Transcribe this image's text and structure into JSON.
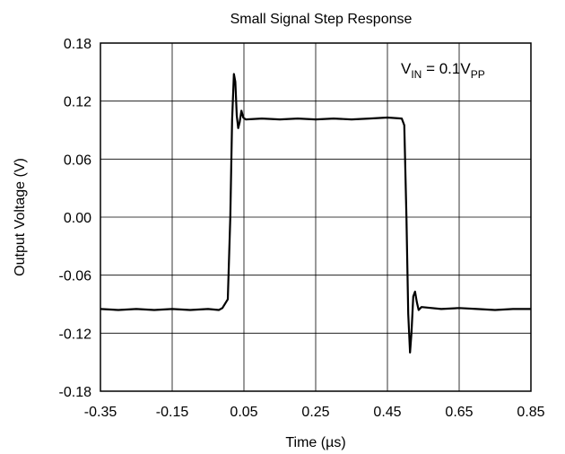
{
  "chart_data": {
    "type": "line",
    "title": "Small Signal Step Response",
    "xlabel": "Time (µs)",
    "ylabel": "Output Voltage (V)",
    "xlim": [
      -0.35,
      0.85
    ],
    "ylim": [
      -0.18,
      0.18
    ],
    "xticks": [
      -0.35,
      -0.15,
      0.05,
      0.25,
      0.45,
      0.65,
      0.85
    ],
    "yticks": [
      0.18,
      0.12,
      0.06,
      0.0,
      -0.06,
      -0.12,
      -0.18
    ],
    "xtick_labels": [
      "-0.35",
      "-0.15",
      "0.05",
      "0.25",
      "0.45",
      "0.65",
      "0.85"
    ],
    "ytick_labels": [
      "0.18",
      "0.12",
      "0.06",
      "0.00",
      "-0.06",
      "-0.12",
      "-0.18"
    ],
    "grid": true,
    "annotation": {
      "base": "V",
      "sub1": "IN",
      "mid": " = 0.1V",
      "sub2": "PP"
    },
    "series": [
      {
        "color": "#000000",
        "points": [
          [
            -0.35,
            -0.095
          ],
          [
            -0.3,
            -0.096
          ],
          [
            -0.25,
            -0.095
          ],
          [
            -0.2,
            -0.096
          ],
          [
            -0.15,
            -0.095
          ],
          [
            -0.1,
            -0.096
          ],
          [
            -0.05,
            -0.095
          ],
          [
            -0.02,
            -0.096
          ],
          [
            -0.01,
            -0.094
          ],
          [
            0.005,
            -0.085
          ],
          [
            0.012,
            0.0
          ],
          [
            0.017,
            0.1
          ],
          [
            0.022,
            0.148
          ],
          [
            0.026,
            0.14
          ],
          [
            0.03,
            0.105
          ],
          [
            0.034,
            0.092
          ],
          [
            0.038,
            0.098
          ],
          [
            0.043,
            0.11
          ],
          [
            0.048,
            0.103
          ],
          [
            0.055,
            0.101
          ],
          [
            0.1,
            0.102
          ],
          [
            0.15,
            0.101
          ],
          [
            0.2,
            0.102
          ],
          [
            0.25,
            0.101
          ],
          [
            0.3,
            0.102
          ],
          [
            0.35,
            0.101
          ],
          [
            0.4,
            0.102
          ],
          [
            0.45,
            0.103
          ],
          [
            0.49,
            0.102
          ],
          [
            0.497,
            0.095
          ],
          [
            0.503,
            0.0
          ],
          [
            0.508,
            -0.1
          ],
          [
            0.513,
            -0.14
          ],
          [
            0.517,
            -0.12
          ],
          [
            0.522,
            -0.082
          ],
          [
            0.527,
            -0.077
          ],
          [
            0.532,
            -0.088
          ],
          [
            0.537,
            -0.096
          ],
          [
            0.545,
            -0.093
          ],
          [
            0.6,
            -0.095
          ],
          [
            0.65,
            -0.094
          ],
          [
            0.7,
            -0.095
          ],
          [
            0.75,
            -0.096
          ],
          [
            0.8,
            -0.095
          ],
          [
            0.85,
            -0.095
          ]
        ]
      }
    ]
  }
}
